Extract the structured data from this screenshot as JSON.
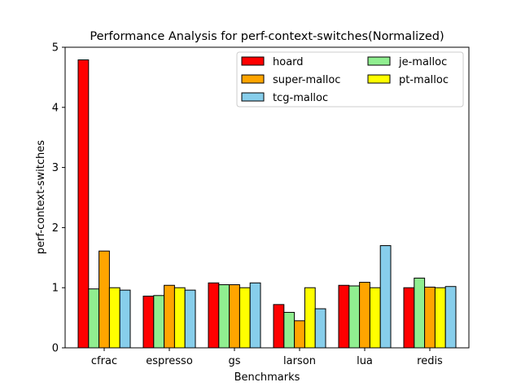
{
  "chart_data": {
    "type": "bar",
    "title": "Performance Analysis for perf-context-switches(Normalized)",
    "xlabel": "Benchmarks",
    "ylabel": "perf-context-switches",
    "ylim": [
      0,
      5
    ],
    "yticks": [
      0,
      1,
      2,
      3,
      4,
      5
    ],
    "grid": false,
    "legend": {
      "placement": "top-right",
      "columns": 2
    },
    "categories": [
      "cfrac",
      "espresso",
      "gs",
      "larson",
      "lua",
      "redis"
    ],
    "series": [
      {
        "name": "hoard",
        "color": "#ff0000",
        "values": [
          4.79,
          0.86,
          1.08,
          0.72,
          1.04,
          1.0
        ]
      },
      {
        "name": "je-malloc",
        "color": "#90ee90",
        "values": [
          0.98,
          0.87,
          1.05,
          0.59,
          1.03,
          1.16
        ]
      },
      {
        "name": "super-malloc",
        "color": "#ffa500",
        "values": [
          1.61,
          1.04,
          1.05,
          0.45,
          1.09,
          1.01
        ]
      },
      {
        "name": "pt-malloc",
        "color": "#ffff00",
        "values": [
          1.0,
          1.0,
          1.0,
          1.0,
          1.0,
          1.0
        ]
      },
      {
        "name": "tcg-malloc",
        "color": "#87ceeb",
        "values": [
          0.96,
          0.96,
          1.08,
          0.65,
          1.7,
          1.02
        ]
      }
    ]
  }
}
